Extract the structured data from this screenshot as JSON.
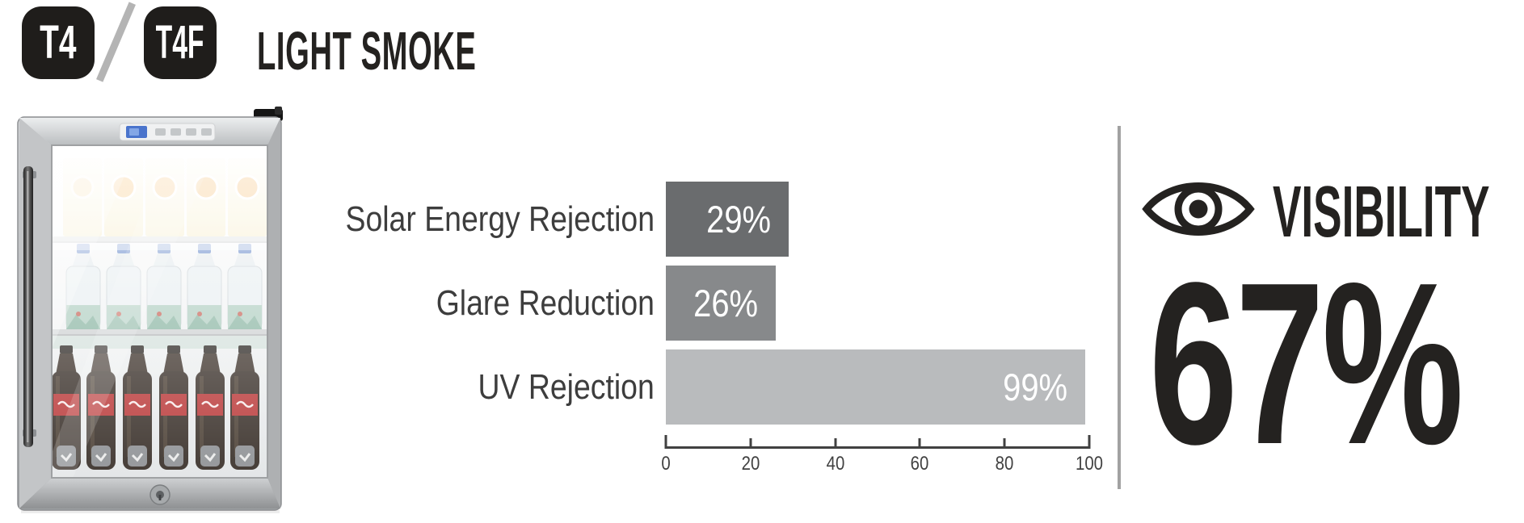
{
  "header": {
    "badges": [
      {
        "label": "T4"
      },
      {
        "label": "T4F"
      }
    ],
    "separator": "/",
    "title": "LIGHT SMOKE"
  },
  "product_image": {
    "description": "Glass-door mini beverage cooler stocked with juice cartons, water bottles and cola bottles"
  },
  "chart_data": {
    "type": "bar",
    "orientation": "horizontal",
    "categories": [
      "Solar Energy Rejection",
      "Glare Reduction",
      "UV Rejection"
    ],
    "values": [
      29,
      26,
      99
    ],
    "value_labels": [
      "29%",
      "26%",
      "99%"
    ],
    "bar_colors": [
      "#6a6c6e",
      "#87898b",
      "#b9bbbd"
    ],
    "value_label_color": "#ffffff",
    "title": "",
    "xlabel": "",
    "ylabel": "",
    "xlim": [
      0,
      100
    ],
    "x_ticks": [
      0,
      20,
      40,
      60,
      80,
      100
    ],
    "grid": false,
    "legend": false
  },
  "visibility": {
    "icon": "eye-icon",
    "label": "VISIBILITY",
    "value": "67%"
  },
  "colors": {
    "badge_bg": "#1f1d1b",
    "badge_text": "#ffffff",
    "headline_text": "#242220",
    "slash": "#b4b4b4",
    "chart_label_text": "#3d3d3d",
    "axis": "#414141",
    "divider": "#a2a2a2"
  }
}
